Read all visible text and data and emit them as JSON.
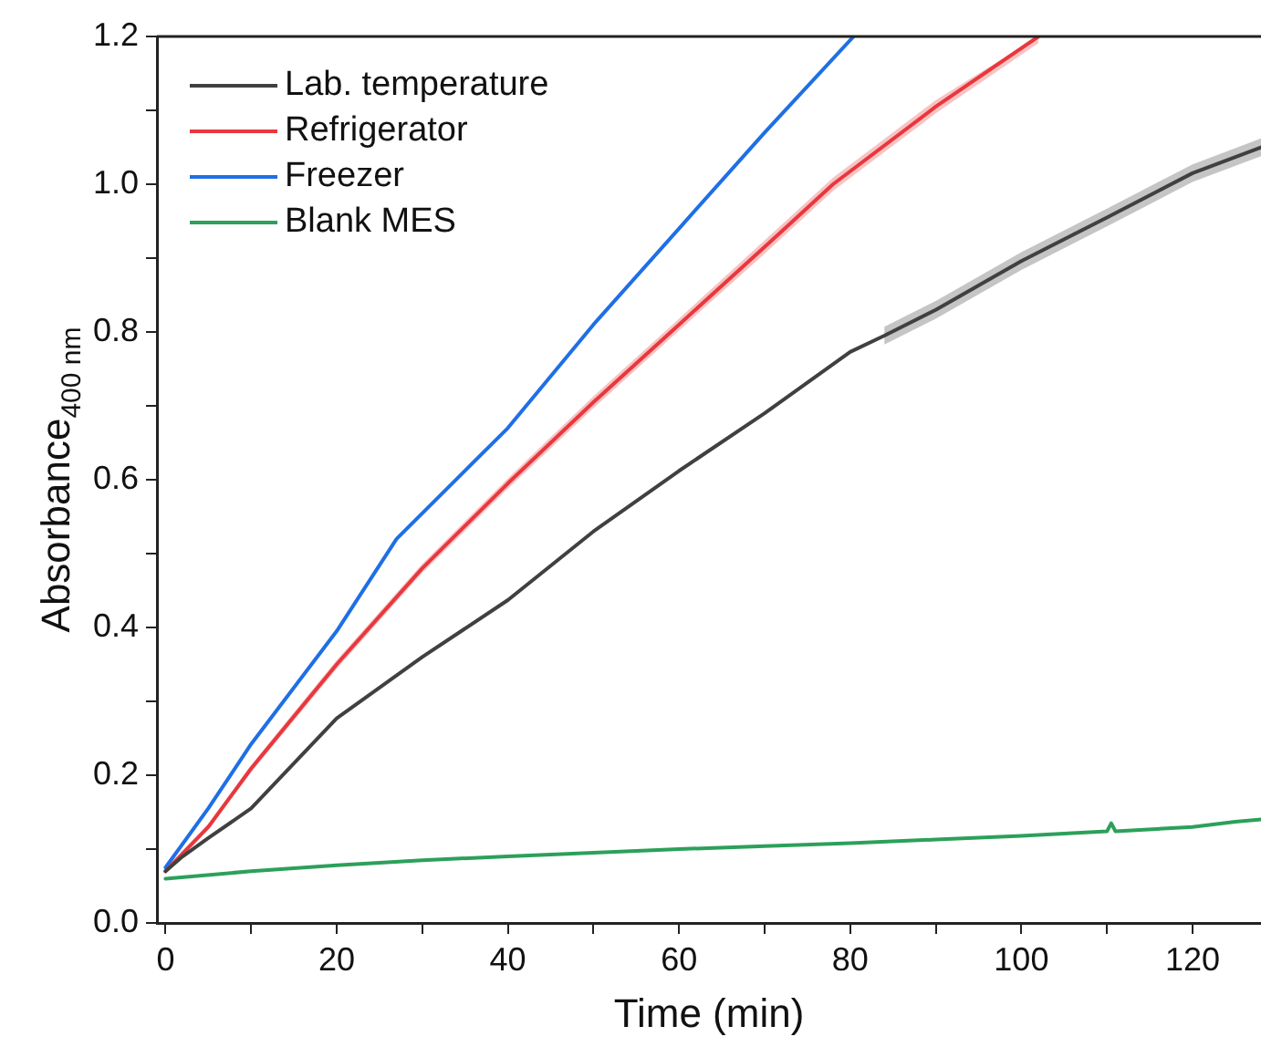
{
  "chart_data": {
    "type": "line",
    "xlabel": "Time (min)",
    "ylabel": "Absorbance$_{400 nm}$",
    "xlim": [
      -1,
      128
    ],
    "ylim": [
      0,
      1.2
    ],
    "xticks": [
      0,
      {
        "value": 10,
        "label": null
      },
      20,
      {
        "value": 30,
        "label": null
      },
      40,
      {
        "value": 50,
        "label": null
      },
      60,
      {
        "value": 70,
        "label": null
      },
      80,
      {
        "value": 90,
        "label": null
      },
      100,
      {
        "value": 110,
        "label": null
      },
      120
    ],
    "yticks": [
      "0.0",
      {
        "value": 0.1,
        "label": null
      },
      {
        "value": 0.2,
        "label": "0.2"
      },
      {
        "value": 0.3,
        "label": null
      },
      {
        "value": 0.4,
        "label": "0.4"
      },
      {
        "value": 0.5,
        "label": null
      },
      {
        "value": 0.6,
        "label": "0.6"
      },
      {
        "value": 0.7,
        "label": null
      },
      {
        "value": 0.8,
        "label": "0.8"
      },
      {
        "value": 0.9,
        "label": null
      },
      {
        "value": 1.0,
        "label": "1.0"
      },
      {
        "value": 1.1,
        "label": null
      },
      {
        "value": 1.2,
        "label": "1.2"
      }
    ],
    "grid": false,
    "legend": "top left",
    "marker": "none",
    "line_style": "solid",
    "series": [
      {
        "name": "Lab. temperature",
        "color": "#404040",
        "x": [
          0,
          2,
          5,
          10,
          20,
          30,
          40,
          50,
          60,
          70,
          80,
          84,
          90,
          100,
          110,
          120,
          128
        ],
        "values": [
          0.07,
          0.09,
          0.115,
          0.155,
          0.277,
          0.36,
          0.437,
          0.53,
          0.612,
          0.69,
          0.773,
          0.795,
          0.83,
          0.896,
          0.955,
          1.015,
          1.05
        ],
        "lower": [
          null,
          null,
          null,
          null,
          null,
          null,
          null,
          null,
          null,
          null,
          null,
          0.783,
          0.818,
          0.884,
          0.943,
          1.003,
          1.038
        ],
        "upper": [
          null,
          null,
          null,
          null,
          null,
          null,
          null,
          null,
          null,
          null,
          null,
          0.807,
          0.842,
          0.908,
          0.967,
          1.027,
          1.062
        ]
      },
      {
        "name": "Refrigerator",
        "color": "#e8383d",
        "x": [
          0,
          5,
          10,
          20,
          30,
          40,
          50,
          60,
          70,
          78,
          90,
          102
        ],
        "values": [
          0.07,
          0.13,
          0.209,
          0.35,
          0.48,
          0.595,
          0.705,
          0.81,
          0.915,
          1.0,
          1.105,
          1.2
        ],
        "lower": [
          0.066,
          0.126,
          0.204,
          0.344,
          0.474,
          0.588,
          0.697,
          0.802,
          0.906,
          0.991,
          1.096,
          1.191
        ],
        "upper": [
          0.074,
          0.134,
          0.214,
          0.356,
          0.486,
          0.602,
          0.713,
          0.818,
          0.924,
          1.009,
          1.114,
          1.2
        ]
      },
      {
        "name": "Freezer",
        "color": "#1f6fe5",
        "x": [
          0,
          5,
          10,
          20,
          27,
          40,
          50,
          60,
          70,
          80.4
        ],
        "values": [
          0.075,
          0.155,
          0.242,
          0.395,
          0.52,
          0.67,
          0.81,
          0.94,
          1.07,
          1.2
        ]
      },
      {
        "name": "Blank MES",
        "color": "#2ca05a",
        "x": [
          0,
          10,
          20,
          30,
          40,
          50,
          60,
          70,
          80,
          90,
          100,
          110,
          110.5,
          111,
          120,
          125,
          128
        ],
        "values": [
          0.06,
          0.07,
          0.078,
          0.085,
          0.09,
          0.095,
          0.1,
          0.104,
          0.108,
          0.113,
          0.118,
          0.124,
          0.135,
          0.124,
          0.13,
          0.137,
          0.14
        ]
      }
    ]
  }
}
